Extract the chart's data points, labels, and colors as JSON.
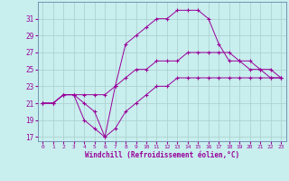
{
  "xlabel": "Windchill (Refroidissement éolien,°C)",
  "background_color": "#c8eeee",
  "line_color": "#990099",
  "grid_color": "#aacccc",
  "xlim": [
    -0.5,
    23.5
  ],
  "ylim": [
    16.5,
    33
  ],
  "yticks": [
    17,
    19,
    21,
    23,
    25,
    27,
    29,
    31
  ],
  "xticks": [
    0,
    1,
    2,
    3,
    4,
    5,
    6,
    7,
    8,
    9,
    10,
    11,
    12,
    13,
    14,
    15,
    16,
    17,
    18,
    19,
    20,
    21,
    22,
    23
  ],
  "line1_x": [
    0,
    1,
    2,
    3,
    4,
    5,
    6,
    7,
    8,
    9,
    10,
    11,
    12,
    13,
    14,
    15,
    16,
    17,
    18,
    19,
    20,
    21,
    22,
    23
  ],
  "line1_y": [
    21,
    21,
    22,
    22,
    21,
    20,
    17,
    23,
    28,
    29,
    30,
    31,
    31,
    32,
    32,
    32,
    31,
    28,
    26,
    26,
    26,
    25,
    24,
    24
  ],
  "line2_x": [
    0,
    1,
    2,
    3,
    4,
    5,
    6,
    7,
    8,
    9,
    10,
    11,
    12,
    13,
    14,
    15,
    16,
    17,
    18,
    19,
    20,
    21,
    22,
    23
  ],
  "line2_y": [
    21,
    21,
    22,
    22,
    22,
    22,
    22,
    23,
    24,
    25,
    25,
    26,
    26,
    26,
    27,
    27,
    27,
    27,
    27,
    26,
    25,
    25,
    25,
    24
  ],
  "line3_x": [
    0,
    1,
    2,
    3,
    4,
    5,
    6,
    7,
    8,
    9,
    10,
    11,
    12,
    13,
    14,
    15,
    16,
    17,
    18,
    19,
    20,
    21,
    22,
    23
  ],
  "line3_y": [
    21,
    21,
    22,
    22,
    19,
    18,
    17,
    18,
    20,
    21,
    22,
    23,
    23,
    24,
    24,
    24,
    24,
    24,
    24,
    24,
    24,
    24,
    24,
    24
  ]
}
